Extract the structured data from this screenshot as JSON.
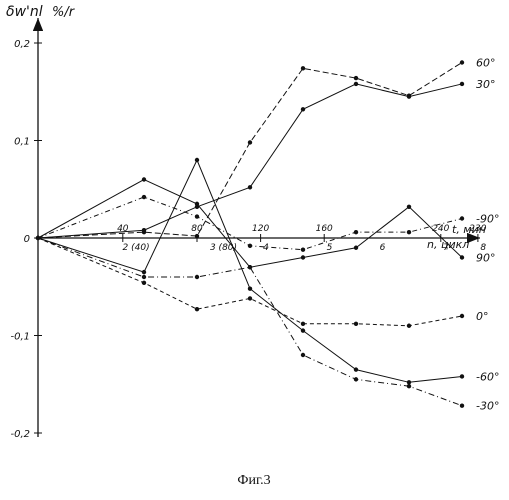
{
  "chart_data": {
    "type": "line",
    "figure_caption": "Фиг.3",
    "ylabel": "δw'nl",
    "yunit": "%/r",
    "xlabel_time": "t, мин",
    "xlabel_cycles": "n, цикл",
    "ylim": [
      -0.22,
      0.23
    ],
    "xlim": [
      0,
      8.6
    ],
    "yticks": [
      {
        "v": 0.2,
        "label": "0,2"
      },
      {
        "v": 0.1,
        "label": "0,1"
      },
      {
        "v": 0,
        "label": "0"
      },
      {
        "v": -0.1,
        "label": "-0,1"
      },
      {
        "v": -0.2,
        "label": "-0,2"
      }
    ],
    "time_ticks": [
      {
        "x": 1.6,
        "label": "40"
      },
      {
        "x": 3.0,
        "label": "80"
      },
      {
        "x": 4.2,
        "label": "120"
      },
      {
        "x": 5.4,
        "label": "160"
      },
      {
        "x": 7.6,
        "label": "240"
      },
      {
        "x": 8.3,
        "label": "230"
      }
    ],
    "cycle_ticks": [
      {
        "x": 1.85,
        "label": "2 (40)"
      },
      {
        "x": 3.5,
        "label": "3 (80)"
      },
      {
        "x": 4.3,
        "label": "4"
      },
      {
        "x": 5.5,
        "label": "5"
      },
      {
        "x": 6.5,
        "label": "6"
      },
      {
        "x": 7.7,
        "label": "7"
      },
      {
        "x": 8.4,
        "label": "8"
      }
    ],
    "x": [
      0,
      2,
      3,
      4,
      5,
      6,
      7,
      8
    ],
    "grid": false,
    "legend": "labels at line ends (right)",
    "series": [
      {
        "name": "60°",
        "values": [
          0,
          0.006,
          0.002,
          0.098,
          0.174,
          0.164,
          0.146,
          0.18
        ]
      },
      {
        "name": "30°",
        "values": [
          0,
          0.008,
          0.032,
          0.052,
          0.132,
          0.158,
          0.145,
          0.158
        ]
      },
      {
        "name": "-90°",
        "values": [
          0,
          0.042,
          0.022,
          -0.008,
          -0.012,
          0.006,
          0.006,
          0.02
        ]
      },
      {
        "name": "90°",
        "values": [
          0,
          0.06,
          0.035,
          -0.03,
          -0.02,
          -0.01,
          0.032,
          -0.02
        ]
      },
      {
        "name": "0°",
        "values": [
          0,
          -0.046,
          -0.073,
          -0.062,
          -0.088,
          -0.088,
          -0.09,
          -0.08
        ]
      },
      {
        "name": "-60°",
        "values": [
          0,
          -0.035,
          0.08,
          -0.052,
          -0.095,
          -0.135,
          -0.148,
          -0.142
        ]
      },
      {
        "name": "-30°",
        "values": [
          0,
          -0.04,
          -0.04,
          -0.03,
          -0.12,
          -0.145,
          -0.152,
          -0.172
        ]
      }
    ]
  }
}
